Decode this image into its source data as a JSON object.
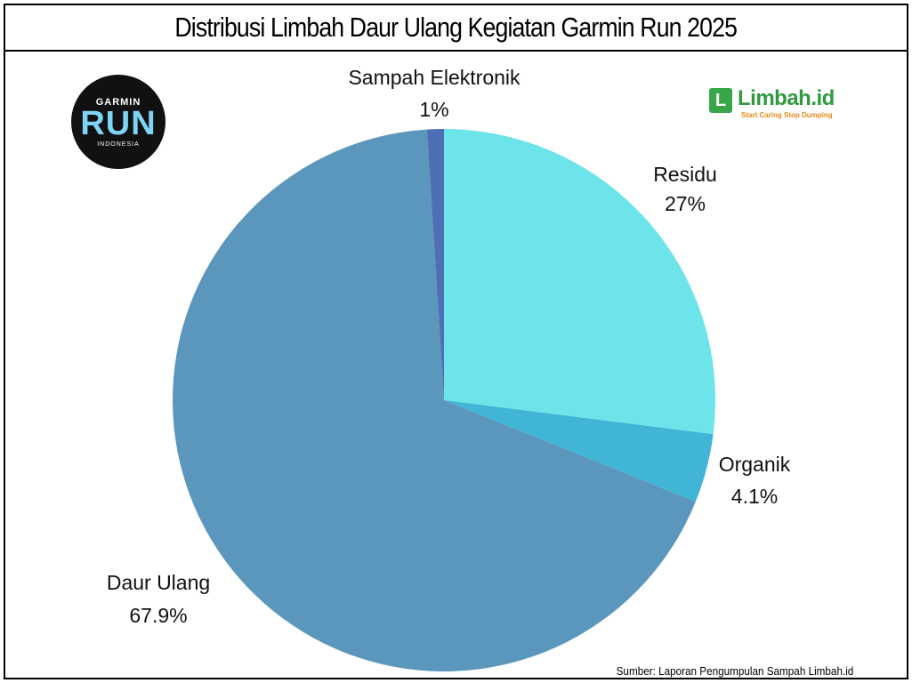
{
  "header": {
    "title": "Distribusi Limbah Daur Ulang Kegiatan Garmin Run 2025"
  },
  "logos": {
    "garmin_run": {
      "line1": "GARMIN",
      "line2": "RUN",
      "line3": "INDONESIA"
    },
    "limbah": {
      "mark": "L",
      "word": "Limbah.id",
      "tagline": "Start Caring Stop Dumping"
    }
  },
  "source": "Sumber: Laporan Pengumpulan Sampah Limbah.id",
  "chart_data": {
    "type": "pie",
    "title": "Distribusi Limbah Daur Ulang Kegiatan Garmin Run 2025",
    "start_angle_deg": 0,
    "direction": "clockwise",
    "slices": [
      {
        "name": "Residu",
        "value": 27,
        "label": "27%",
        "color": "#6ce4e9"
      },
      {
        "name": "Organik",
        "value": 4.1,
        "label": "4.1%",
        "color": "#41b5d6"
      },
      {
        "name": "Daur Ulang",
        "value": 67.9,
        "label": "67.9%",
        "color": "#5b97bc"
      },
      {
        "name": "Sampah Elektronik",
        "value": 1,
        "label": "1%",
        "color": "#4e6fb3"
      }
    ]
  }
}
